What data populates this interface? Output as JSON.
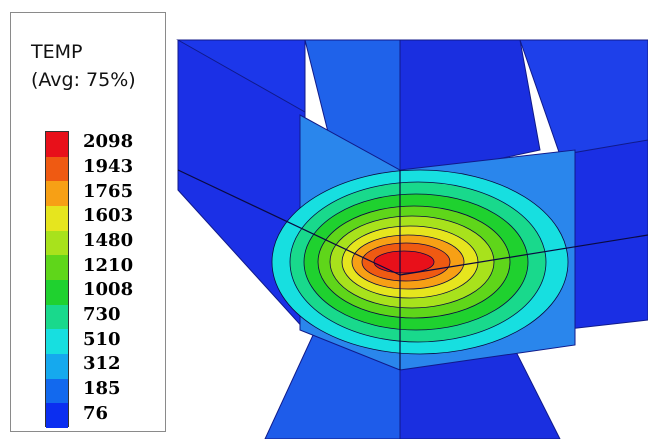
{
  "legend": {
    "title": "TEMP",
    "subtitle": "(Avg: 75%)",
    "levels": [
      {
        "label": "2098",
        "color": "#e8101a"
      },
      {
        "label": "1943",
        "color": "#ef5a12"
      },
      {
        "label": "1765",
        "color": "#f7a015"
      },
      {
        "label": "1603",
        "color": "#e6e51e"
      },
      {
        "label": "1480",
        "color": "#a8e21c"
      },
      {
        "label": "1210",
        "color": "#5fd61a"
      },
      {
        "label": "1008",
        "color": "#1fd12f"
      },
      {
        "label": "730",
        "color": "#19d98c"
      },
      {
        "label": "510",
        "color": "#17dfe0"
      },
      {
        "label": "312",
        "color": "#15a9ee"
      },
      {
        "label": "185",
        "color": "#1269ee"
      },
      {
        "label": "76",
        "color": "#0b2ef0"
      }
    ]
  },
  "colors": {
    "base_blue": "#1a2fe8",
    "dark_blue": "#0e1ec8",
    "mid_blue": "#1f55e6",
    "light_blue": "#2a86ec"
  }
}
